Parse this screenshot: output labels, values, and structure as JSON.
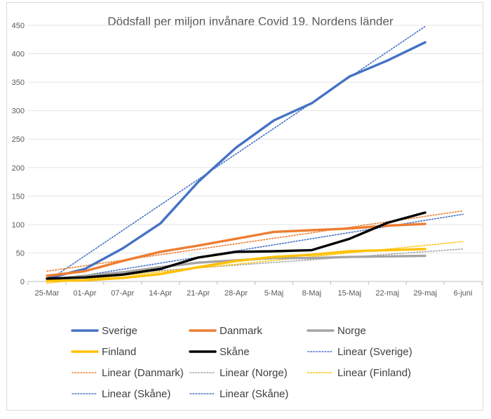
{
  "chart_data": {
    "type": "line",
    "title": "Dödsfall per miljon invånare Covid 19. Nordens länder",
    "xlabel": "",
    "ylabel": "",
    "categories": [
      "25-Mar",
      "01-Apr",
      "07-Apr",
      "14-Apr",
      "21-Apr",
      "28-Apr",
      "5-Maj",
      "8-Maj",
      "15-Maj",
      "22-maj",
      "29-maj",
      "6-juni"
    ],
    "ylim": [
      0,
      450
    ],
    "yticks": [
      0,
      50,
      100,
      150,
      200,
      250,
      300,
      350,
      400,
      450
    ],
    "grid": true,
    "legend_position": "bottom",
    "series": [
      {
        "name": "Sverige",
        "color": "#4472c4",
        "values": [
          5,
          22,
          58,
          102,
          175,
          235,
          283,
          313,
          360,
          388,
          420,
          null
        ]
      },
      {
        "name": "Danmark",
        "color": "#ed7d31",
        "values": [
          10,
          18,
          36,
          52,
          63,
          75,
          87,
          90,
          93,
          98,
          101,
          null
        ]
      },
      {
        "name": "Norge",
        "color": "#a5a5a5",
        "values": [
          3,
          10,
          16,
          25,
          33,
          37,
          41,
          41,
          43,
          44,
          45,
          null
        ]
      },
      {
        "name": "Finland",
        "color": "#ffc000",
        "values": [
          1,
          2,
          6,
          13,
          25,
          36,
          43,
          47,
          53,
          55,
          57,
          null
        ]
      },
      {
        "name": "Skåne",
        "color": "#000000",
        "values": [
          5,
          7,
          12,
          22,
          42,
          52,
          53,
          55,
          75,
          103,
          121,
          null
        ]
      }
    ],
    "trendlines": [
      {
        "label": "Linear (Sverige)",
        "color": "#4472c4",
        "start": [
          0,
          0
        ],
        "end": [
          10,
          448
        ]
      },
      {
        "label": "Linear (Danmark)",
        "color": "#ed7d31",
        "start": [
          0,
          18
        ],
        "end": [
          11,
          124
        ]
      },
      {
        "label": "Linear (Norge)",
        "color": "#a5a5a5",
        "start": [
          0,
          5
        ],
        "end": [
          11,
          57
        ]
      },
      {
        "label": "Linear (Finland)",
        "color": "#ffc000",
        "start": [
          0,
          -3
        ],
        "end": [
          11,
          70
        ]
      },
      {
        "label": "Linear (Skåne)",
        "color": "#4472c4",
        "start": [
          0,
          0
        ],
        "end": [
          11,
          118
        ]
      },
      {
        "label": "Linear (Skåne)",
        "color": "#4472c4",
        "start": null,
        "end": null
      }
    ],
    "legend_order": [
      {
        "label": "Sverige",
        "color": "#4472c4",
        "style": "solid"
      },
      {
        "label": "Danmark",
        "color": "#ed7d31",
        "style": "solid"
      },
      {
        "label": "Norge",
        "color": "#a5a5a5",
        "style": "solid"
      },
      {
        "label": "Finland",
        "color": "#ffc000",
        "style": "solid"
      },
      {
        "label": "Skåne",
        "color": "#000000",
        "style": "solid"
      },
      {
        "label": "Linear (Sverige)",
        "color": "#4472c4",
        "style": "dotted"
      },
      {
        "label": "Linear (Danmark)",
        "color": "#ed7d31",
        "style": "dotted"
      },
      {
        "label": "Linear (Norge)",
        "color": "#a5a5a5",
        "style": "dotted"
      },
      {
        "label": "Linear (Finland)",
        "color": "#ffc000",
        "style": "dotted"
      },
      {
        "label": "Linear (Skåne)",
        "color": "#4472c4",
        "style": "dotted"
      },
      {
        "label": "Linear (Skåne)",
        "color": "#4472c4",
        "style": "dotted"
      }
    ]
  }
}
